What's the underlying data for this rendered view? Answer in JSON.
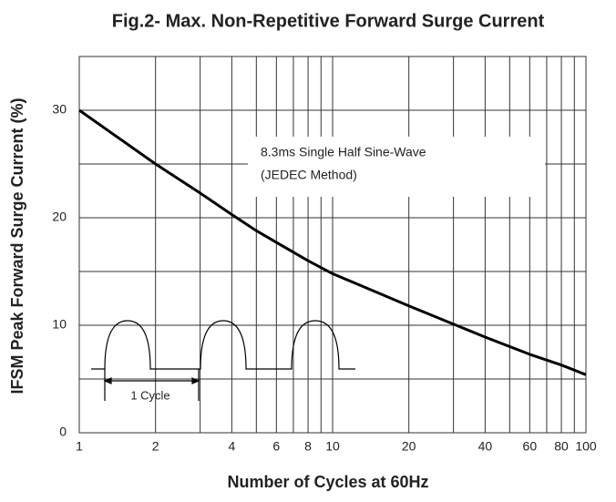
{
  "chart_data": {
    "type": "line",
    "title": "Fig.2- Max. Non-Repetitive Forward Surge Current",
    "x_label": "Number of Cycles at 60Hz",
    "y_label": "IFSM Peak Forward Surge Current (%)",
    "x": [
      1,
      2,
      3,
      4,
      5,
      6,
      8,
      10,
      20,
      40,
      60,
      80,
      100
    ],
    "series": [
      {
        "name": "IFSM",
        "color": "#000000",
        "values": [
          30,
          25,
          22.3,
          20.3,
          18.8,
          17.7,
          16,
          14.8,
          11.8,
          8.9,
          7.3,
          6.3,
          5.4
        ]
      }
    ],
    "xlog": true,
    "xlim": [
      1,
      100
    ],
    "xticks": [
      1,
      2,
      4,
      6,
      8,
      10,
      20,
      40,
      60,
      80,
      100
    ],
    "xticks_minor": [
      3,
      5,
      7,
      9,
      30,
      50,
      70,
      90
    ],
    "ylim": [
      0,
      35
    ],
    "yticks": [
      0,
      10,
      20,
      30
    ],
    "yticks_minor": [
      5,
      15,
      25
    ],
    "grid": true,
    "annotations": [
      "8.3ms Single Half Sine-Wave",
      "(JEDEC Method)",
      "1 Cycle"
    ]
  }
}
